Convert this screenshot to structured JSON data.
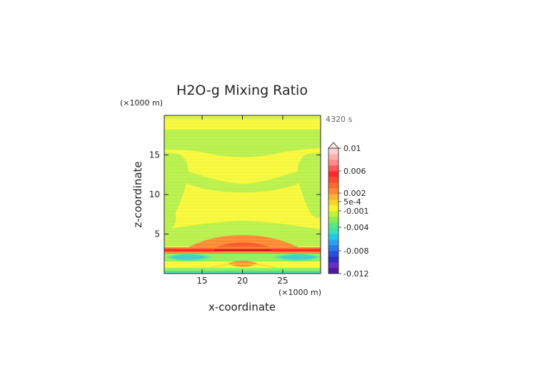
{
  "chart_data": {
    "type": "heatmap",
    "title": "H2O-g Mixing Ratio",
    "time_label": "4320 s",
    "xlabel": "x-coordinate",
    "ylabel": "z-coordinate",
    "x_unit": "(×1000 m)",
    "y_unit": "(×1000 m)",
    "xlim": [
      10.3,
      29.7
    ],
    "ylim": [
      0,
      20
    ],
    "x_ticks": [
      15,
      20,
      25
    ],
    "y_ticks": [
      5,
      10,
      15
    ],
    "colorbar": {
      "labels": [
        "0.01",
        "0.006",
        "0.002",
        "5e-4",
        "-0.001",
        "-0.004",
        "-0.008",
        "-0.012"
      ],
      "colors": [
        "#4a1a9e",
        "#6a2cc6",
        "#2e2ec0",
        "#2b4fd8",
        "#2f78e6",
        "#2aa3f0",
        "#22c9e8",
        "#3ee0b0",
        "#58e88a",
        "#8aee4a",
        "#c2f23a",
        "#f6f52a",
        "#f8d42c",
        "#fab030",
        "#fb8a32",
        "#fc6a2c",
        "#fd4a2a",
        "#fe2a28",
        "#fe5a5a",
        "#fe8a8a",
        "#fdb0b0",
        "#fcd0d0"
      ],
      "overflow_color": "#fbe3e3"
    },
    "colors": {
      "yellow": "#f7f73a",
      "green": "#b8f04a",
      "light_green": "#8ef05a",
      "teal": "#3fe0b0",
      "cyan": "#30b8ee",
      "blue": "#2f78e6",
      "orange": "#fb8a32",
      "red_orange": "#fc5a2a",
      "red": "#fd2a22",
      "dark_red": "#c01818"
    }
  }
}
